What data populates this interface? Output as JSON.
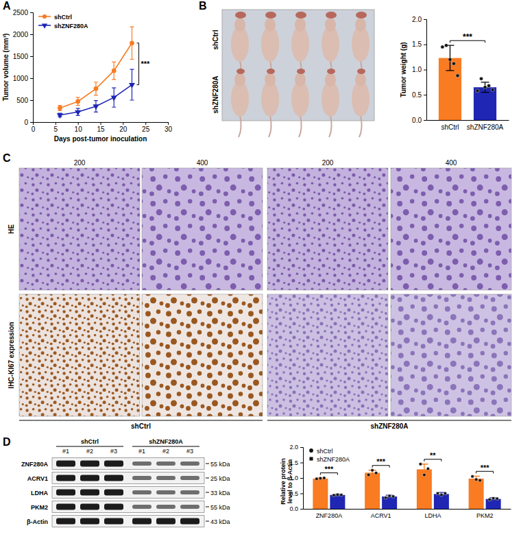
{
  "chart_data": [
    {
      "type": "line",
      "label": "A",
      "x_label": "Days post-tumor inoculation",
      "y_label": "Tumor volume (mm³)",
      "x": [
        6,
        10,
        14,
        18,
        22
      ],
      "xlim": [
        0,
        30
      ],
      "xticks": [
        0,
        5,
        10,
        15,
        20,
        25,
        30
      ],
      "ylim": [
        0,
        2500
      ],
      "yticks": [
        0,
        500,
        1000,
        1500,
        2000,
        2500
      ],
      "legend": "top-left",
      "series": [
        {
          "name": "shCtrl",
          "color": "#f97b22",
          "marker": "circle",
          "values": [
            320,
            470,
            760,
            1170,
            1800
          ],
          "errors": [
            60,
            90,
            150,
            200,
            370
          ]
        },
        {
          "name": "shZNF280A",
          "color": "#1f26b4",
          "marker": "triangle-down",
          "values": [
            160,
            230,
            360,
            560,
            850
          ],
          "errors": [
            40,
            80,
            130,
            220,
            350
          ]
        }
      ],
      "annotations": [
        {
          "text": "***"
        }
      ]
    },
    {
      "type": "bar",
      "y_label": "Tumor weight (g)",
      "categories": [
        "shCtrl",
        "shZNF280A"
      ],
      "values": [
        1.23,
        0.65
      ],
      "errors": [
        0.25,
        0.1
      ],
      "points": [
        [
          1.45,
          1.48,
          1.2,
          1.12,
          0.88
        ],
        [
          0.58,
          0.82,
          0.65,
          0.68,
          0.6
        ]
      ],
      "colors": [
        "#f97b22",
        "#1f26b4"
      ],
      "ylim": [
        0,
        2
      ],
      "yticks": [
        {
          "value": 0,
          "label": "0.0"
        },
        {
          "value": 0.5,
          "label": "0.5"
        },
        {
          "value": 1,
          "label": "1.0"
        },
        {
          "value": 1.5,
          "label": "1.5"
        },
        {
          "value": 2,
          "label": "2.0"
        }
      ],
      "annotations": [
        {
          "text": "***"
        }
      ]
    },
    {
      "type": "bar",
      "y_label": "Relative protein level to β-Actin",
      "categories": [
        "ZNF280A",
        "ACRV1",
        "LDHA",
        "PKM2"
      ],
      "ylim": [
        0,
        2
      ],
      "yticks": [
        {
          "value": 0,
          "label": "0.0"
        },
        {
          "value": 0.5,
          "label": "0.5"
        },
        {
          "value": 1,
          "label": "1.0"
        },
        {
          "value": 1.5,
          "label": "1.5"
        },
        {
          "value": 2,
          "label": "2.0"
        }
      ],
      "legend": "top-left",
      "series": [
        {
          "name": "shCtrl",
          "color": "#f97b22",
          "marker": "circle",
          "values": [
            0.98,
            1.17,
            1.28,
            0.98
          ],
          "errors": [
            0.03,
            0.08,
            0.17,
            0.08
          ],
          "points": [
            [
              0.97,
              0.99,
              1.0
            ],
            [
              1.1,
              1.25,
              1.16
            ],
            [
              1.45,
              1.1,
              1.3
            ],
            [
              1.05,
              0.95,
              0.92
            ]
          ]
        },
        {
          "name": "shZNF280A",
          "color": "#1f26b4",
          "marker": "square",
          "values": [
            0.45,
            0.4,
            0.48,
            0.32
          ],
          "errors": [
            0.02,
            0.04,
            0.05,
            0.04
          ],
          "points": [
            [
              0.44,
              0.46,
              0.45
            ],
            [
              0.36,
              0.42,
              0.4
            ],
            [
              0.5,
              0.45,
              0.5
            ],
            [
              0.3,
              0.34,
              0.33
            ]
          ]
        }
      ],
      "annotations": [
        {
          "text": "***"
        },
        {
          "text": "***"
        },
        {
          "text": "**"
        },
        {
          "text": "***"
        }
      ]
    }
  ],
  "figure": {
    "photo_b": {
      "label": "B",
      "row_labels": [
        "shCtrl",
        "shZNF280A"
      ]
    },
    "panel_c": {
      "label": "C",
      "column_labels": [
        "200",
        "400",
        "200",
        "400"
      ],
      "row_labels": [
        "HE",
        "IHC-KI67 expression"
      ],
      "group_labels": [
        "shCtrl",
        "shZNF280A"
      ]
    },
    "blot_d": {
      "label": "D",
      "group_labels": [
        "shCtrl",
        "shZNF280A"
      ],
      "lanes": [
        "#1",
        "#2",
        "#3",
        "#1",
        "#2",
        "#3"
      ],
      "proteins": [
        "ZNF280A",
        "ACRV1",
        "LDHA",
        "PKM2",
        "β-Actin"
      ],
      "sizes": [
        "55 kDa",
        "25 kDa",
        "33 kDa",
        "55 kDa",
        "43 kDa"
      ]
    }
  }
}
